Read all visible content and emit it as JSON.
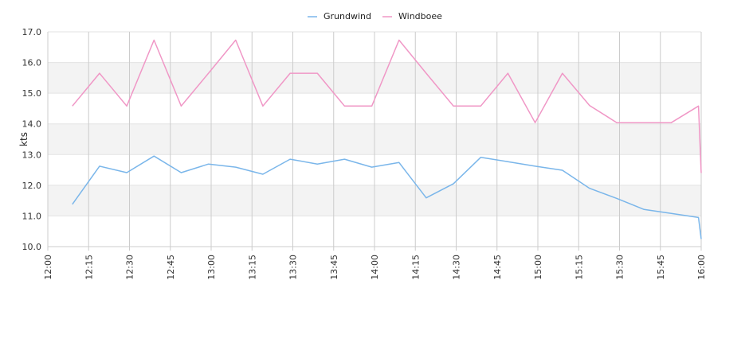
{
  "chart_data": {
    "type": "line",
    "ylabel": "kts",
    "ylim": [
      10.0,
      17.0
    ],
    "yticks": [
      "10.0",
      "11.0",
      "12.0",
      "13.0",
      "14.0",
      "15.0",
      "16.0",
      "17.0"
    ],
    "xlim": [
      "12:00",
      "16:00"
    ],
    "xticks": [
      "12:00",
      "12:15",
      "12:30",
      "12:45",
      "13:00",
      "13:15",
      "13:30",
      "13:45",
      "14:00",
      "14:15",
      "14:30",
      "14:45",
      "15:00",
      "15:15",
      "15:30",
      "15:45",
      "16:00"
    ],
    "grid": true,
    "legend": "top-center",
    "series": [
      {
        "name": "Grundwind",
        "color": "#7ab6ea",
        "points": [
          [
            "12:09",
            11.38
          ],
          [
            "12:19",
            12.62
          ],
          [
            "12:29",
            12.41
          ],
          [
            "12:39",
            12.95
          ],
          [
            "12:49",
            12.41
          ],
          [
            "12:59",
            12.69
          ],
          [
            "13:09",
            12.59
          ],
          [
            "13:19",
            12.36
          ],
          [
            "13:29",
            12.85
          ],
          [
            "13:39",
            12.69
          ],
          [
            "13:49",
            12.85
          ],
          [
            "13:59",
            12.59
          ],
          [
            "14:09",
            12.74
          ],
          [
            "14:19",
            11.59
          ],
          [
            "14:29",
            12.05
          ],
          [
            "14:39",
            12.91
          ],
          [
            "14:49",
            12.77
          ],
          [
            "14:59",
            12.62
          ],
          [
            "15:09",
            12.49
          ],
          [
            "15:19",
            11.9
          ],
          [
            "15:29",
            11.57
          ],
          [
            "15:39",
            11.21
          ],
          [
            "15:49",
            11.08
          ],
          [
            "15:59",
            10.95
          ],
          [
            "16:00",
            10.25
          ]
        ]
      },
      {
        "name": "Windboee",
        "color": "#f097c6",
        "points": [
          [
            "12:09",
            14.58
          ],
          [
            "12:19",
            15.65
          ],
          [
            "12:29",
            14.58
          ],
          [
            "12:39",
            16.73
          ],
          [
            "12:49",
            14.58
          ],
          [
            "12:59",
            15.65
          ],
          [
            "13:09",
            16.73
          ],
          [
            "13:19",
            14.58
          ],
          [
            "13:29",
            15.65
          ],
          [
            "13:39",
            15.65
          ],
          [
            "13:49",
            14.58
          ],
          [
            "13:59",
            14.58
          ],
          [
            "14:09",
            16.73
          ],
          [
            "14:19",
            15.65
          ],
          [
            "14:29",
            14.58
          ],
          [
            "14:39",
            14.58
          ],
          [
            "14:49",
            15.65
          ],
          [
            "14:59",
            14.04
          ],
          [
            "15:09",
            15.65
          ],
          [
            "15:19",
            14.6
          ],
          [
            "15:29",
            14.04
          ],
          [
            "15:39",
            14.04
          ],
          [
            "15:49",
            14.04
          ],
          [
            "15:59",
            14.58
          ],
          [
            "16:00",
            12.4
          ]
        ]
      }
    ]
  }
}
